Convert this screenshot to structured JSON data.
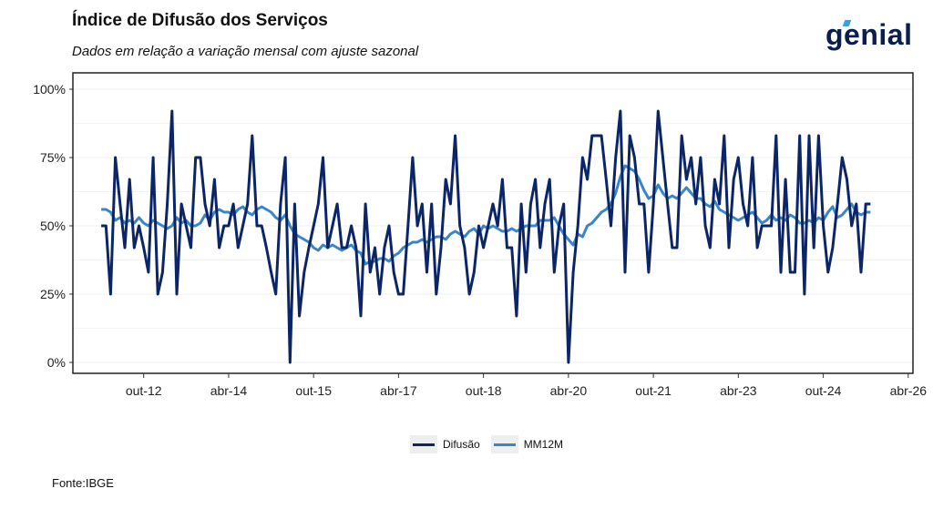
{
  "title": "Índice de Difusão dos Serviços",
  "subtitle": "Dados em relação a variação mensal com ajuste sazonal",
  "logo": "genial",
  "source": "Fonte:IBGE",
  "chart_data": {
    "type": "line",
    "x_start": "jan-12",
    "x_frequency": "monthly",
    "x_ticks": [
      "out-12",
      "abr-14",
      "out-15",
      "abr-17",
      "out-18",
      "abr-20",
      "out-21",
      "abr-23",
      "out-24",
      "abr-26"
    ],
    "x_tick_month_index": [
      9,
      27,
      45,
      63,
      81,
      99,
      117,
      135,
      153,
      171
    ],
    "x_range_month_index": [
      -6,
      172
    ],
    "y_ticks": [
      "0%",
      "25%",
      "50%",
      "75%",
      "100%"
    ],
    "y_tick_values": [
      0,
      25,
      50,
      75,
      100
    ],
    "ylim": [
      -4,
      106
    ],
    "grid": true,
    "legend_position": "bottom",
    "colors": {
      "Difusão": "#0b2566",
      "MM12M": "#3a85c8"
    },
    "series": [
      {
        "name": "Difusão",
        "values": [
          50,
          50,
          25,
          75,
          58,
          42,
          67,
          42,
          50,
          42,
          33,
          75,
          25,
          33,
          58,
          92,
          25,
          58,
          50,
          42,
          75,
          75,
          58,
          50,
          67,
          42,
          50,
          50,
          58,
          42,
          50,
          58,
          83,
          50,
          50,
          42,
          33,
          25,
          58,
          75,
          0,
          58,
          17,
          33,
          42,
          50,
          58,
          75,
          42,
          50,
          58,
          42,
          42,
          50,
          42,
          17,
          58,
          33,
          42,
          25,
          42,
          50,
          33,
          25,
          25,
          50,
          75,
          50,
          58,
          33,
          58,
          25,
          42,
          67,
          58,
          83,
          50,
          42,
          25,
          33,
          50,
          42,
          50,
          58,
          50,
          67,
          42,
          42,
          17,
          58,
          33,
          58,
          67,
          42,
          58,
          67,
          33,
          50,
          58,
          0,
          33,
          50,
          75,
          67,
          83,
          83,
          83,
          67,
          50,
          75,
          92,
          33,
          83,
          75,
          58,
          58,
          33,
          58,
          92,
          75,
          58,
          42,
          42,
          83,
          67,
          75,
          58,
          75,
          50,
          42,
          67,
          58,
          83,
          42,
          67,
          75,
          58,
          50,
          75,
          42,
          50,
          50,
          50,
          83,
          33,
          67,
          33,
          33,
          83,
          25,
          83,
          42,
          83,
          50,
          33,
          42,
          58,
          75,
          67,
          50,
          58,
          33,
          58,
          58
        ]
      },
      {
        "name": "MM12M",
        "values": [
          56,
          56,
          55,
          52,
          53,
          51,
          52,
          51,
          53,
          51,
          50,
          52,
          51,
          50,
          49,
          50,
          53,
          51,
          52,
          50,
          50,
          51,
          54,
          52,
          55,
          56,
          55,
          55,
          54,
          56,
          57,
          55,
          54,
          56,
          57,
          56,
          55,
          53,
          52,
          54,
          50,
          47,
          46,
          45,
          44,
          42,
          41,
          43,
          42,
          43,
          42,
          41,
          42,
          43,
          41,
          40,
          36,
          37,
          37,
          38,
          38,
          37,
          39,
          40,
          42,
          43,
          44,
          44,
          45,
          44,
          45,
          46,
          46,
          45,
          47,
          48,
          47,
          46,
          48,
          49,
          47,
          50,
          49,
          50,
          49,
          48,
          48,
          49,
          48,
          49,
          50,
          50,
          50,
          52,
          52,
          52,
          53,
          50,
          47,
          45,
          43,
          47,
          46,
          50,
          51,
          53,
          55,
          56,
          58,
          62,
          68,
          72,
          71,
          70,
          67,
          63,
          60,
          61,
          65,
          62,
          60,
          61,
          60,
          62,
          64,
          62,
          60,
          60,
          58,
          57,
          59,
          56,
          55,
          54,
          53,
          52,
          53,
          54,
          55,
          53,
          51,
          52,
          54,
          52,
          53,
          52,
          54,
          53,
          51,
          51,
          52,
          51,
          53,
          52,
          55,
          57,
          53,
          54,
          56,
          58,
          55,
          54,
          55,
          55
        ]
      }
    ]
  }
}
